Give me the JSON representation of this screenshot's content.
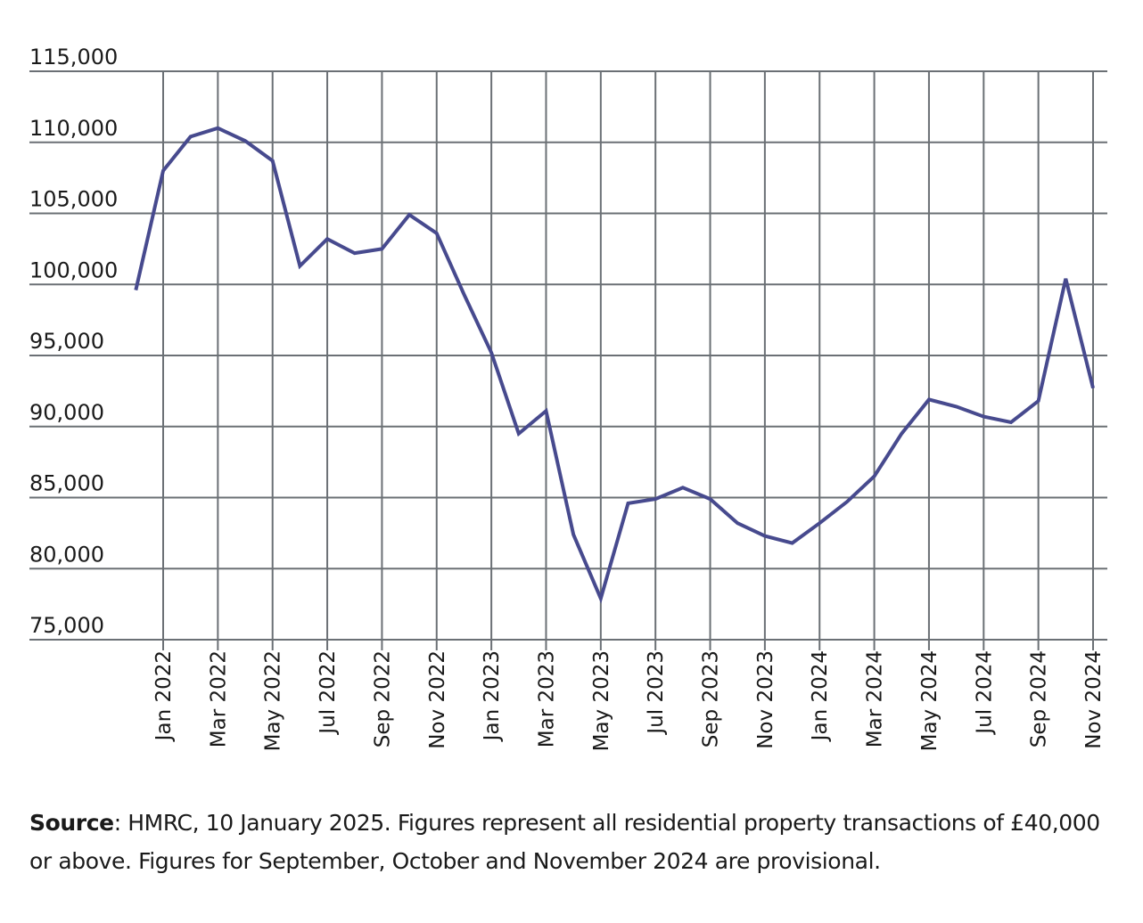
{
  "chart_data": {
    "type": "line",
    "title": "",
    "xlabel": "",
    "ylabel": "",
    "ylim": [
      75000,
      115000
    ],
    "yticks": [
      115000,
      110000,
      105000,
      100000,
      95000,
      90000,
      85000,
      80000,
      75000
    ],
    "ytick_labels": [
      "115,000",
      "110,000",
      "105,000",
      "100,000",
      "95,000",
      "90,000",
      "85,000",
      "80,000",
      "75,000"
    ],
    "xtick_labels": [
      "Jan 2022",
      "Mar 2022",
      "May 2022",
      "Jul 2022",
      "Sep 2022",
      "Nov 2022",
      "Jan 2023",
      "Mar 2023",
      "May 2023",
      "Jul 2023",
      "Sep 2023",
      "Nov 2023",
      "Jan 2024",
      "Mar 2024",
      "May 2024",
      "Jul 2024",
      "Sep 2024",
      "Nov 2024"
    ],
    "grid": true,
    "legend": "none",
    "series_color": "#474a8e",
    "series": [
      {
        "name": "Residential property transactions",
        "x": [
          "Dec 2021",
          "Jan 2022",
          "Feb 2022",
          "Mar 2022",
          "Apr 2022",
          "May 2022",
          "Jun 2022",
          "Jul 2022",
          "Aug 2022",
          "Sep 2022",
          "Oct 2022",
          "Nov 2022",
          "Dec 2022",
          "Jan 2023",
          "Feb 2023",
          "Mar 2023",
          "Apr 2023",
          "May 2023",
          "Jun 2023",
          "Jul 2023",
          "Aug 2023",
          "Sep 2023",
          "Oct 2023",
          "Nov 2023",
          "Dec 2023",
          "Jan 2024",
          "Feb 2024",
          "Mar 2024",
          "Apr 2024",
          "May 2024",
          "Jun 2024",
          "Jul 2024",
          "Aug 2024",
          "Sep 2024",
          "Oct 2024",
          "Nov 2024"
        ],
        "values": [
          99600,
          108000,
          110400,
          111000,
          110100,
          108700,
          101300,
          103200,
          102200,
          102500,
          104900,
          103600,
          99300,
          95200,
          89500,
          91100,
          82400,
          77900,
          84600,
          84900,
          85700,
          84900,
          83200,
          82300,
          81800,
          83200,
          84700,
          86500,
          89500,
          91900,
          91400,
          90700,
          90300,
          91800,
          100400,
          92700
        ]
      }
    ]
  },
  "source": {
    "label": "Source",
    "text": ": HMRC, 10 January 2025. Figures represent all residential property transactions of £40,000 or above. Figures for September, October and November 2024 are provisional."
  }
}
